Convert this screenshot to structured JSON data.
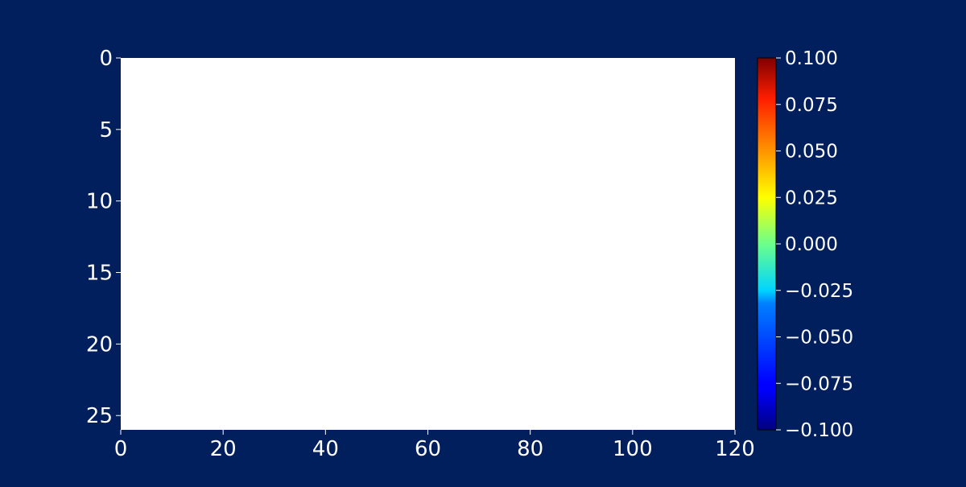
{
  "chart_data": {
    "type": "heatmap",
    "title": "",
    "xlabel": "",
    "ylabel": "",
    "xlim": [
      0,
      120
    ],
    "ylim": [
      26,
      0
    ],
    "x_ticks": [
      0,
      20,
      40,
      60,
      80,
      100,
      120
    ],
    "y_ticks": [
      0,
      5,
      10,
      15,
      20,
      25
    ],
    "values": [],
    "colorbar": {
      "colormap": "jet",
      "min": -0.1,
      "max": 0.1,
      "ticks": [
        "0.100",
        "0.075",
        "0.050",
        "0.025",
        "0.000",
        "−0.025",
        "−0.050",
        "−0.075",
        "−0.100"
      ],
      "tick_values": [
        0.1,
        0.075,
        0.05,
        0.025,
        0.0,
        -0.025,
        -0.05,
        -0.075,
        -0.1
      ]
    },
    "grid": false
  },
  "colors": {
    "background": "#001f5c",
    "plot_area": "#ffffff",
    "text": "#ffffff"
  }
}
